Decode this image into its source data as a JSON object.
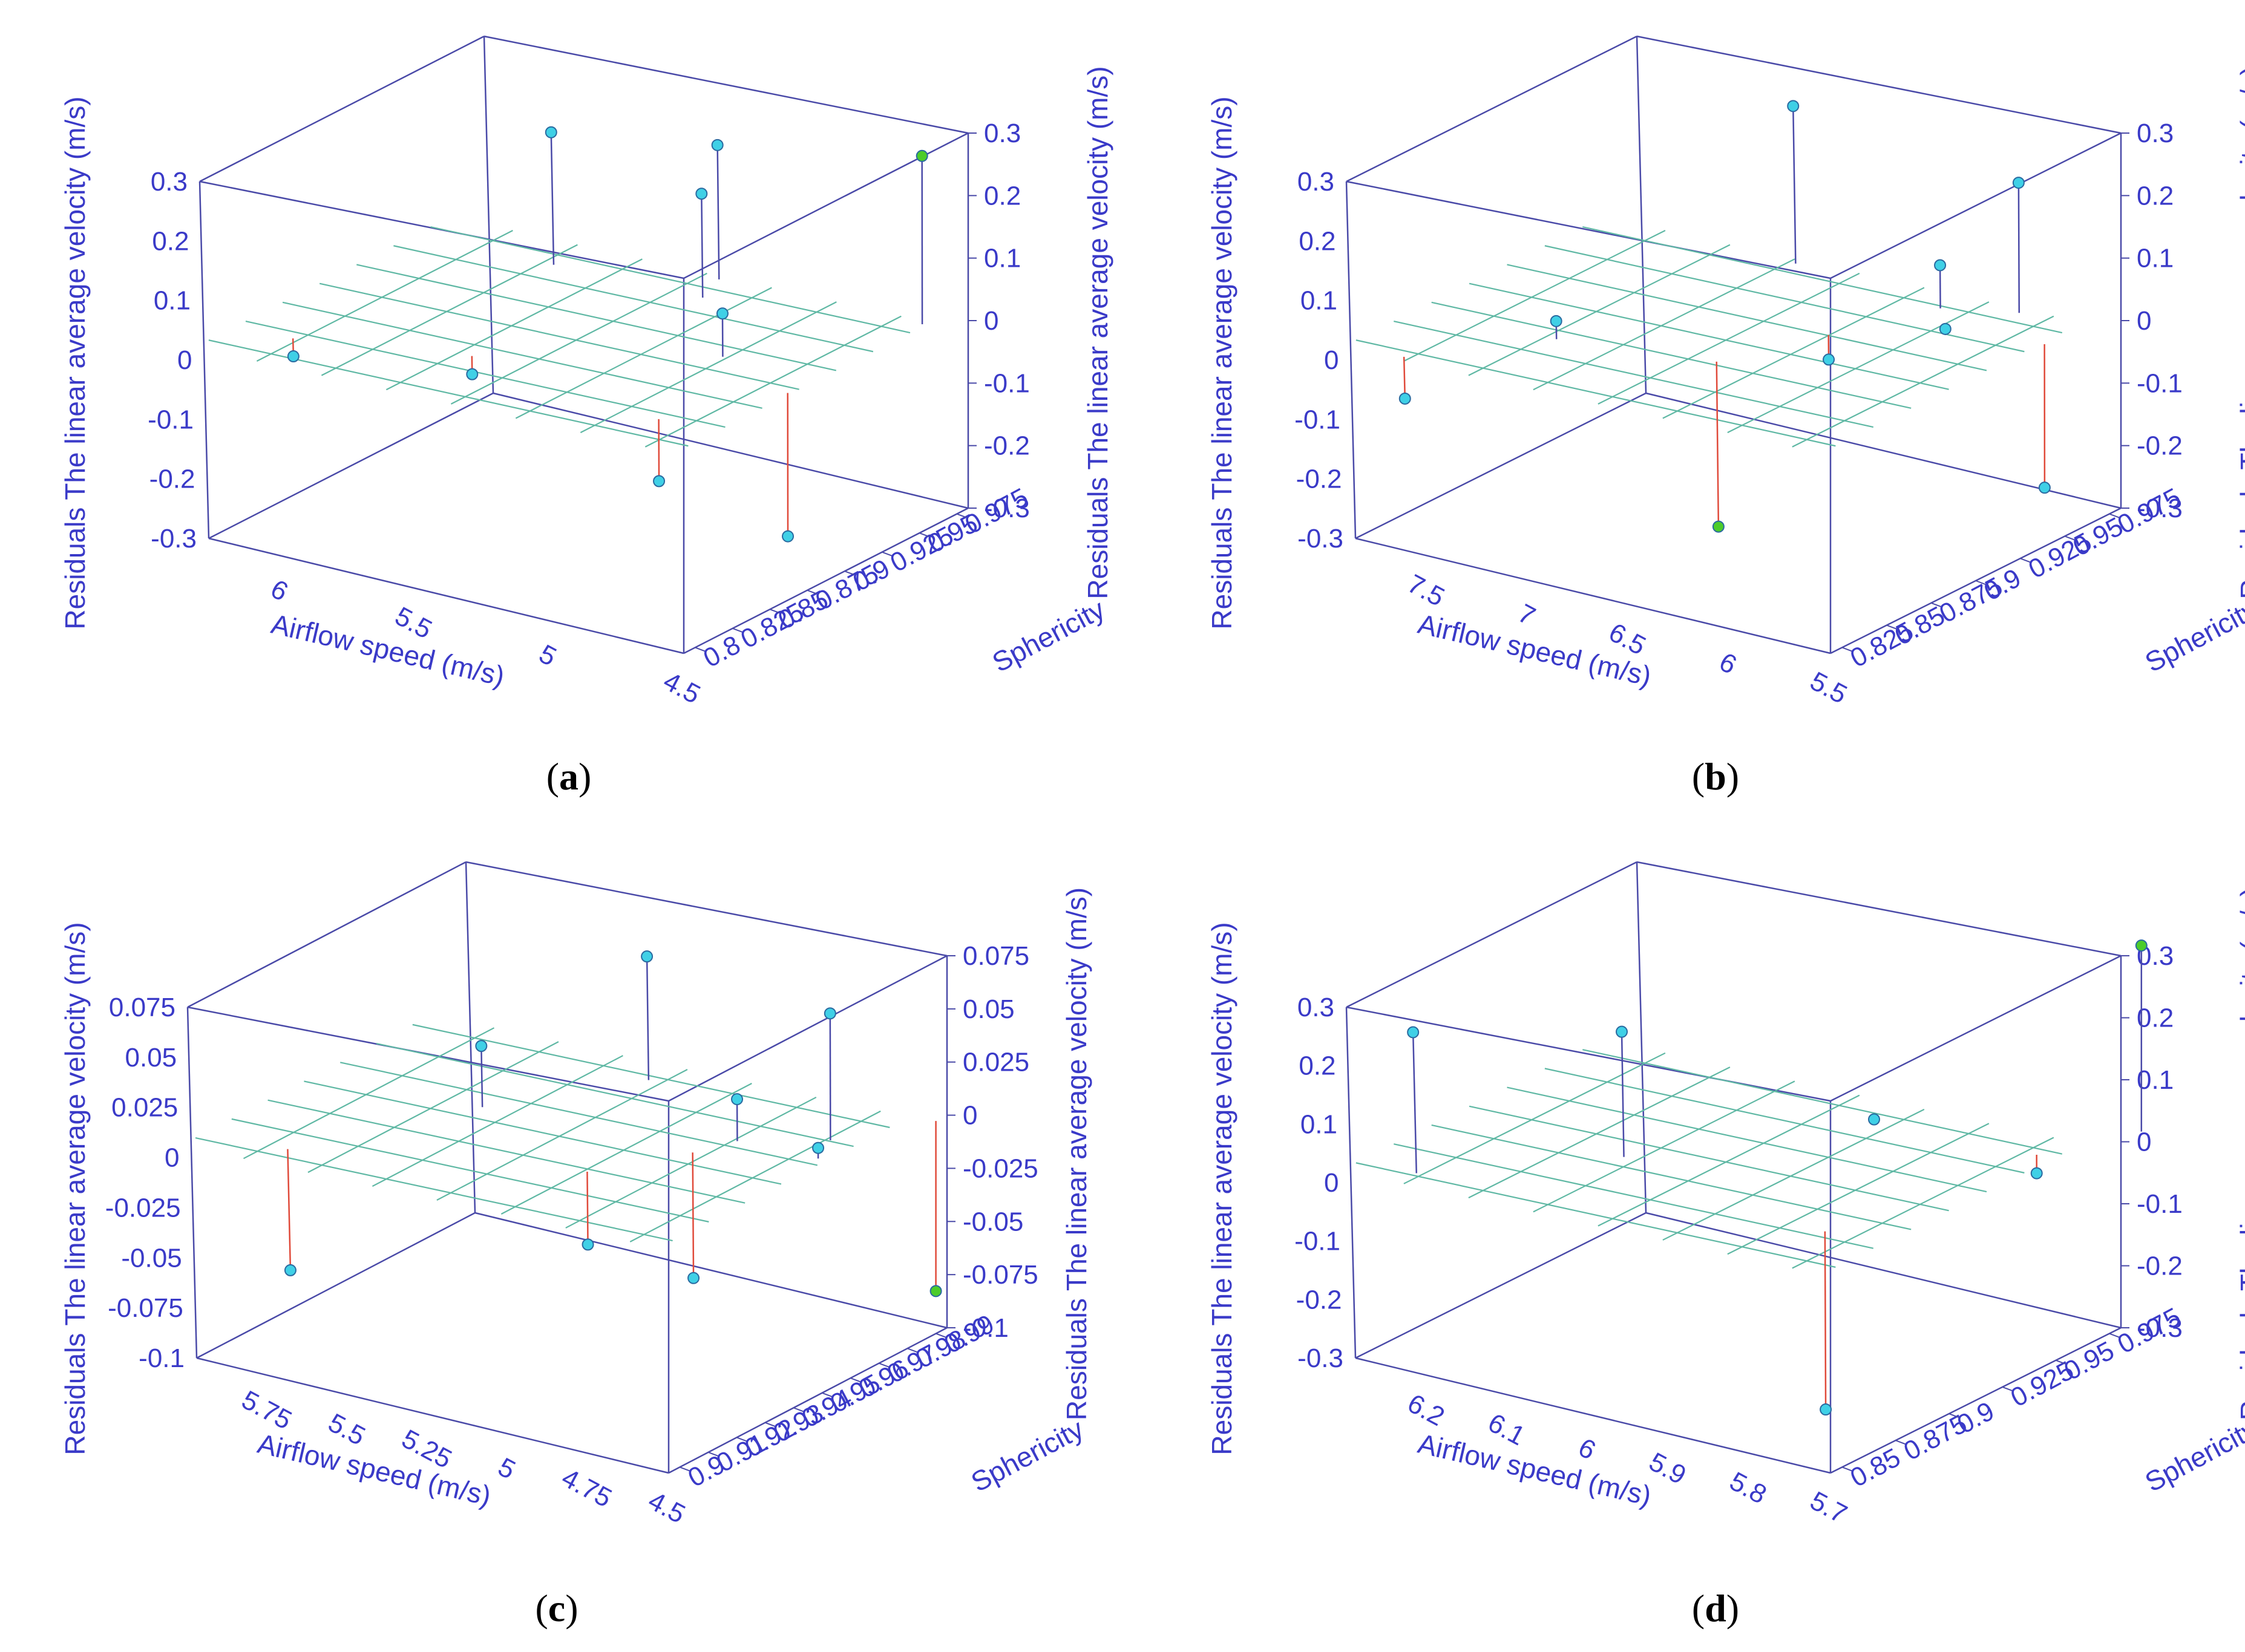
{
  "colors": {
    "box": "#4a4aa8",
    "text": "#3a3ac8",
    "plane": "#5fb8a4",
    "stem_positive": "#4a4aa8",
    "stem_negative": "#e04a3a",
    "marker": "#3fd0e6",
    "marker_extreme": "#4ccc2a",
    "marker_edge": "#2a6aa0"
  },
  "chart_data": [
    {
      "type": "scatter",
      "panel_label": "a",
      "zlabel": "Residuals The linear average velocity  (m/s)",
      "xlabel": "Airflow speed (m/s)",
      "ylabel": "Sphericity",
      "z_ticks": [
        "0.3",
        "0.2",
        "0.1",
        "0",
        "-0.1",
        "-0.2",
        "-0.3"
      ],
      "x_ticks": [
        "6",
        "5.5",
        "5",
        "4.5"
      ],
      "y_ticks": [
        "0.8",
        "0.825",
        "0.85",
        "0.875",
        "0.9",
        "0.925",
        "0.95",
        "0.975"
      ],
      "points": [
        {
          "x": 6.15,
          "y": 0.83,
          "z": -0.03
        },
        {
          "x": 5.6,
          "y": 0.85,
          "z": -0.03
        },
        {
          "x": 5.85,
          "y": 0.95,
          "z": 0.22
        },
        {
          "x": 5.35,
          "y": 0.97,
          "z": 0.22
        },
        {
          "x": 5.3,
          "y": 0.95,
          "z": 0.17
        },
        {
          "x": 4.95,
          "y": 0.9,
          "z": 0.07
        },
        {
          "x": 4.8,
          "y": 0.83,
          "z": -0.1
        },
        {
          "x": 4.6,
          "y": 0.88,
          "z": -0.23
        },
        {
          "x": 4.6,
          "y": 0.97,
          "z": 0.27
        }
      ]
    },
    {
      "type": "scatter",
      "panel_label": "b",
      "zlabel": "Residuals The linear average velocity  (m/s)",
      "xlabel": "Airflow speed (m/s)",
      "ylabel": "Sphericity",
      "z_ticks": [
        "0.3",
        "0.2",
        "0.1",
        "0",
        "-0.1",
        "-0.2",
        "-0.3"
      ],
      "x_ticks": [
        "7.5",
        "7",
        "6.5",
        "6",
        "5.5"
      ],
      "y_ticks": [
        "0.825",
        "0.85",
        "0.875",
        "0.9",
        "0.925",
        "0.95",
        "0.975"
      ],
      "points": [
        {
          "x": 7.7,
          "y": 0.83,
          "z": -0.07
        },
        {
          "x": 7.3,
          "y": 0.87,
          "z": 0.03
        },
        {
          "x": 7.0,
          "y": 0.97,
          "z": 0.26
        },
        {
          "x": 6.6,
          "y": 0.88,
          "z": -0.27
        },
        {
          "x": 6.4,
          "y": 0.92,
          "z": -0.04
        },
        {
          "x": 6.2,
          "y": 0.96,
          "z": 0.07
        },
        {
          "x": 6.0,
          "y": 0.94,
          "z": 0.01
        },
        {
          "x": 5.9,
          "y": 0.97,
          "z": 0.21
        },
        {
          "x": 5.6,
          "y": 0.95,
          "z": -0.23
        }
      ]
    },
    {
      "type": "scatter",
      "panel_label": "c",
      "zlabel": "Residuals The linear average velocity  (m/s)",
      "xlabel": "Airflow speed (m/s)",
      "ylabel": "Sphericity",
      "z_ticks": [
        "0.075",
        "0.05",
        "0.025",
        "0",
        "-0.025",
        "-0.05",
        "-0.075",
        "-0.1"
      ],
      "x_ticks": [
        "5.75",
        "5.5",
        "5.25",
        "5",
        "4.75",
        "4.5"
      ],
      "y_ticks": [
        "0.9",
        "0.91",
        "0.92",
        "0.93",
        "0.94",
        "0.95",
        "0.96",
        "0.97",
        "0.98",
        "0.99"
      ],
      "points": [
        {
          "x": 5.8,
          "y": 0.91,
          "z": -0.06
        },
        {
          "x": 5.55,
          "y": 0.95,
          "z": 0.03
        },
        {
          "x": 5.3,
          "y": 0.98,
          "z": 0.06
        },
        {
          "x": 5.05,
          "y": 0.93,
          "z": -0.035
        },
        {
          "x": 4.9,
          "y": 0.95,
          "z": -0.06
        },
        {
          "x": 4.85,
          "y": 0.96,
          "z": 0.02
        },
        {
          "x": 4.65,
          "y": 0.97,
          "z": 0.06
        },
        {
          "x": 4.6,
          "y": 0.96,
          "z": 0.005
        },
        {
          "x": 4.5,
          "y": 0.99,
          "z": -0.08
        }
      ]
    },
    {
      "type": "scatter",
      "panel_label": "d",
      "zlabel": "Residuals The linear average velocity  (m/s)",
      "xlabel": "Airflow speed (m/s)",
      "ylabel": "Sphericity",
      "z_ticks": [
        "0.3",
        "0.2",
        "0.1",
        "0",
        "-0.1",
        "-0.2",
        "-0.3"
      ],
      "x_ticks": [
        "6.2",
        "6.1",
        "6",
        "5.9",
        "5.8",
        "5.7"
      ],
      "y_ticks": [
        "0.85",
        "0.875",
        "0.9",
        "0.925",
        "0.95",
        "0.975"
      ],
      "points": [
        {
          "x": 6.25,
          "y": 0.86,
          "z": 0.24
        },
        {
          "x": 6.1,
          "y": 0.9,
          "z": 0.21
        },
        {
          "x": 5.95,
          "y": 0.96,
          "z": 0.0
        },
        {
          "x": 5.8,
          "y": 0.88,
          "z": -0.29
        },
        {
          "x": 5.75,
          "y": 0.96,
          "z": -0.03
        },
        {
          "x": 5.7,
          "y": 0.99,
          "z": 0.3
        }
      ]
    }
  ]
}
